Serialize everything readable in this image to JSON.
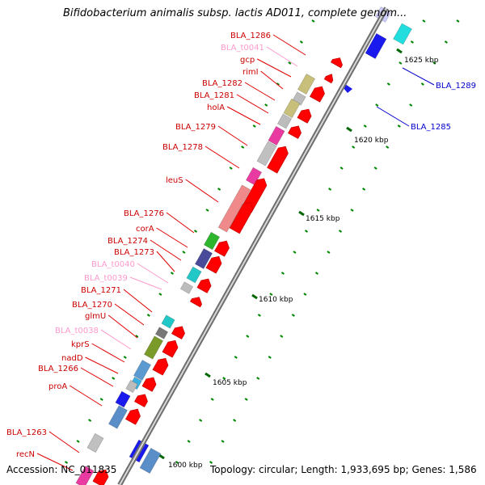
{
  "title": "Bifidobacterium animalis subsp. lactis AD011, complete genom...",
  "footer": {
    "accession": "Accession: NC_011835",
    "topology": "Topology: circular; Length: 1,933,695 bp; Genes: 1,586"
  },
  "scale_labels": [
    "1625 kbp",
    "1620 kbp",
    "1615 kbp",
    "1610 kbp",
    "1605 kbp",
    "1600 kbp"
  ],
  "colors": {
    "cds_label": "#cc0000",
    "trna_label": "#ff99cc",
    "other_label": "#0000cc",
    "cds": "#ff0000",
    "trna": "#ff88cc",
    "other": "#0000ff",
    "backbone": "#9a9a9a",
    "tick": "#008800"
  },
  "genes": [
    {
      "name": "BLA_1286",
      "type": "cds"
    },
    {
      "name": "BLA_t0041",
      "type": "trna"
    },
    {
      "name": "gcp",
      "type": "cds"
    },
    {
      "name": "rimI",
      "type": "cds"
    },
    {
      "name": "BLA_1282",
      "type": "cds"
    },
    {
      "name": "BLA_1281",
      "type": "cds"
    },
    {
      "name": "holA",
      "type": "cds"
    },
    {
      "name": "BLA_1279",
      "type": "cds"
    },
    {
      "name": "BLA_1278",
      "type": "cds"
    },
    {
      "name": "leuS",
      "type": "cds"
    },
    {
      "name": "BLA_1276",
      "type": "cds"
    },
    {
      "name": "corA",
      "type": "cds"
    },
    {
      "name": "BLA_1274",
      "type": "cds"
    },
    {
      "name": "BLA_1273",
      "type": "cds"
    },
    {
      "name": "BLA_t0040",
      "type": "trna"
    },
    {
      "name": "BLA_t0039",
      "type": "trna"
    },
    {
      "name": "BLA_1271",
      "type": "cds"
    },
    {
      "name": "BLA_1270",
      "type": "cds"
    },
    {
      "name": "glmU",
      "type": "cds"
    },
    {
      "name": "BLA_t0038",
      "type": "trna"
    },
    {
      "name": "kprS",
      "type": "cds"
    },
    {
      "name": "nadD",
      "type": "cds"
    },
    {
      "name": "BLA_1266",
      "type": "cds"
    },
    {
      "name": "proA",
      "type": "cds"
    },
    {
      "name": "BLA_1263",
      "type": "cds"
    },
    {
      "name": "recN",
      "type": "cds"
    },
    {
      "name": "BLA_1289",
      "type": "other"
    },
    {
      "name": "BLA_1285",
      "type": "other"
    }
  ]
}
